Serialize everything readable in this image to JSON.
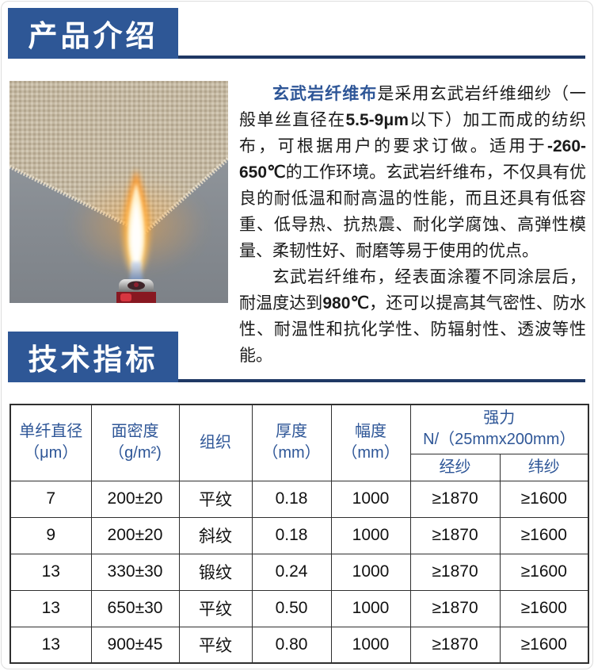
{
  "page": {
    "section1_title": "产品介绍",
    "section2_title": "技术指标"
  },
  "colors": {
    "accent_blue": "#2e5796",
    "rule_navy": "#1f3864",
    "header_text_blue": "#2e5697",
    "table_border": "#2f2f2f"
  },
  "photo": {
    "description": "basalt fiber cloth held over lighter flame on gray concrete background"
  },
  "intro": {
    "paragraphs": [
      {
        "segments": [
          {
            "text": "玄武岩纤维布",
            "style": "brand"
          },
          {
            "text": "是采用玄武岩纤维细纱（一般单丝直径在",
            "style": "normal"
          },
          {
            "text": "5.5-9μm",
            "style": "num"
          },
          {
            "text": "以下）加工而成的纺织布，可根据用户的要求订做。适用于",
            "style": "normal"
          },
          {
            "text": "-260-650℃",
            "style": "num"
          },
          {
            "text": "的工作环境。玄武岩纤维布，不仅具有优良的耐低温和耐高温的性能，而且还具有低容重、低导热、抗热震、耐化学腐蚀、高弹性模量、柔韧性好、耐磨等易于使用的优点。",
            "style": "normal"
          }
        ]
      },
      {
        "segments": [
          {
            "text": "玄武岩纤维布，经表面涂覆不同涂层后，耐温度达到",
            "style": "normal"
          },
          {
            "text": "980℃",
            "style": "num"
          },
          {
            "text": "，还可以提高其气密性、防水性、耐温性和抗化学性、防辐射性、透波等性能。",
            "style": "normal"
          }
        ]
      }
    ]
  },
  "table": {
    "simple_headers": [
      "单纤直径\n（μm）",
      "面密度\n（g/m²)",
      "组织",
      "厚度\n（mm）",
      "幅度\n（mm）"
    ],
    "strength_group": {
      "line1": "强力",
      "line2": "N/（25mmx200mm）",
      "children": [
        "经纱",
        "纬纱"
      ]
    },
    "rows": [
      [
        "7",
        "200±20",
        "平纹",
        "0.18",
        "1000",
        "≥1870",
        "≥1600"
      ],
      [
        "9",
        "200±20",
        "斜纹",
        "0.18",
        "1000",
        "≥1870",
        "≥1600"
      ],
      [
        "13",
        "330±30",
        "锻纹",
        "0.24",
        "1000",
        "≥1870",
        "≥1600"
      ],
      [
        "13",
        "650±30",
        "平纹",
        "0.50",
        "1000",
        "≥1870",
        "≥1600"
      ],
      [
        "13",
        "900±45",
        "平纹",
        "0.80",
        "1000",
        "≥1870",
        "≥1600"
      ]
    ]
  }
}
